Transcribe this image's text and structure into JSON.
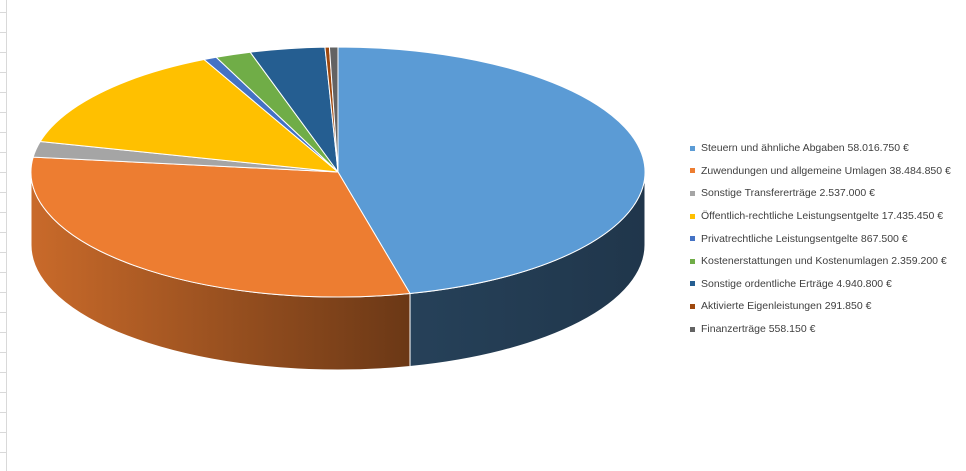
{
  "chart_data": {
    "type": "pie",
    "title": "",
    "legend_position": "right",
    "categories": [
      "Steuern und ähnliche Abgaben",
      "Zuwendungen und allgemeine Umlagen",
      "Sonstige Transfererträge",
      "Öffentlich-rechtliche Leistungsentgelte",
      "Privatrechtliche Leistungsentgelte",
      "Kostenerstattungen und Kostenumlagen",
      "Sonstige ordentliche Erträge",
      "Aktivierte Eigenleistungen",
      "Finanzerträge"
    ],
    "values": [
      58016750,
      38484850,
      2537000,
      17435450,
      867500,
      2359200,
      4940800,
      291850,
      558150
    ],
    "legend_labels": [
      "Steuern und ähnliche Abgaben  58.016.750 €",
      "Zuwendungen und allgemeine Umlagen  38.484.850 €",
      "Sonstige Transfererträge  2.537.000 €",
      "Öffentlich-rechtliche Leistungsentgelte  17.435.450 €",
      "Privatrechtliche Leistungsentgelte  867.500 €",
      "Kostenerstattungen und Kostenumlagen  2.359.200 €",
      "Sonstige ordentliche Erträge  4.940.800 €",
      "Aktivierte Eigenleistungen  291.850 €",
      "Finanzerträge  558.150 €"
    ],
    "colors": [
      "#5b9bd5",
      "#ed7d31",
      "#a5a5a5",
      "#ffc000",
      "#4472c4",
      "#70ad47",
      "#255e91",
      "#9e480e",
      "#636363"
    ],
    "style": "3d"
  }
}
